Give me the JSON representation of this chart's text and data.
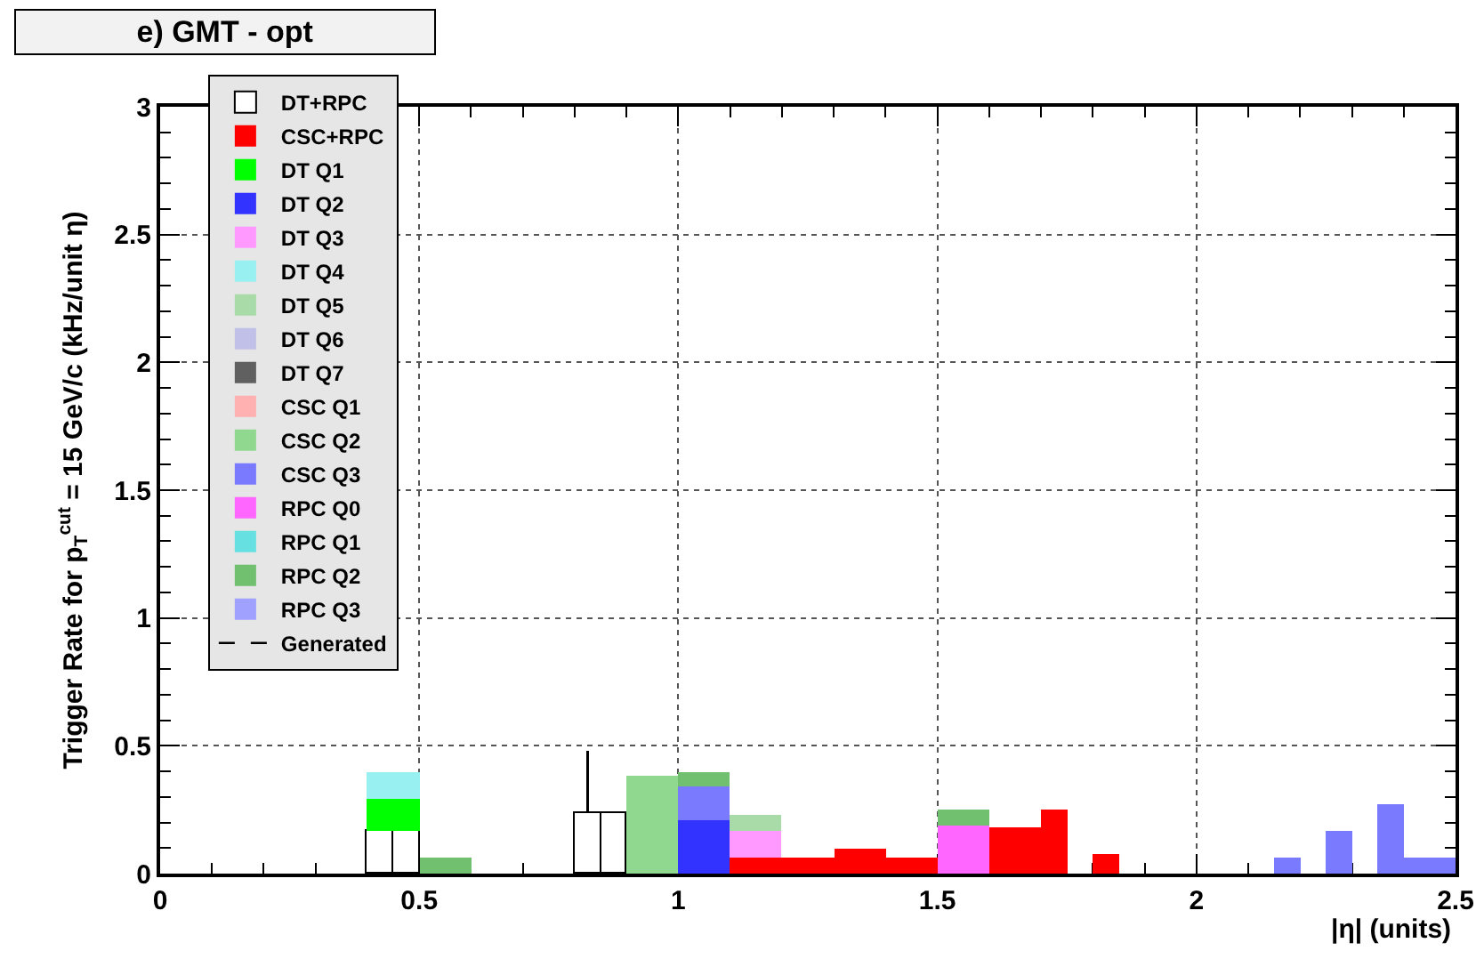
{
  "chart_data": {
    "type": "bar",
    "title": "e) GMT - opt",
    "xlabel": "|η| (units)",
    "ylabel": "Trigger Rate for p$_{T}$$^{cut}$ = 15 GeV/c (kHz/unit η)",
    "x": [
      0.425,
      0.475,
      0.525,
      0.575,
      0.825,
      0.875,
      0.925,
      0.975,
      1.025,
      1.075,
      1.125,
      1.175,
      1.225,
      1.275,
      1.325,
      1.375,
      1.425,
      1.475,
      1.525,
      1.575,
      1.625,
      1.675,
      1.725,
      1.825,
      2.175,
      2.275,
      2.375,
      2.425,
      2.475
    ],
    "stacked": true,
    "xlim": [
      0,
      2.5
    ],
    "ylim": [
      0,
      3
    ],
    "xticks": [
      0,
      0.5,
      1,
      1.5,
      2,
      2.5
    ],
    "yticks": [
      0,
      0.5,
      1,
      1.5,
      2,
      2.5,
      3
    ],
    "grid": true,
    "legend": "top left",
    "series": [
      {
        "name": "DT+RPC",
        "color": "#ffffff",
        "values": [
          0.17,
          0.17,
          null,
          null,
          0.24,
          0.24,
          null,
          null,
          null,
          null,
          null,
          null,
          null,
          null,
          null,
          null,
          null,
          null,
          null,
          null,
          null,
          null,
          null,
          null,
          null,
          null,
          null,
          null,
          null
        ],
        "errors": [
          null,
          null,
          null,
          null,
          [
            0.24,
            0.48
          ],
          null,
          null,
          null,
          null,
          null,
          null,
          null,
          null,
          null,
          null,
          null,
          null,
          null,
          null,
          null,
          null,
          null,
          null,
          null,
          null,
          null,
          null,
          null,
          null
        ]
      },
      {
        "name": "CSC+RPC",
        "color": "#ff0000",
        "values": [
          null,
          null,
          null,
          null,
          null,
          null,
          null,
          null,
          null,
          null,
          0.06,
          0.06,
          0.06,
          0.06,
          0.1,
          0.1,
          0.06,
          0.06,
          null,
          null,
          0.18,
          0.18,
          0.25,
          0.08,
          null,
          null,
          null,
          null,
          null
        ]
      },
      {
        "name": "DT Q1",
        "color": "#00ff00",
        "values": [
          0.12,
          0.12,
          null,
          null,
          null,
          null,
          null,
          null,
          null,
          null,
          null,
          null,
          null,
          null,
          null,
          null,
          null,
          null,
          null,
          null,
          null,
          null,
          null,
          null,
          null,
          null,
          null,
          null,
          null
        ]
      },
      {
        "name": "DT Q2",
        "color": "#3333ff",
        "values": [
          null,
          null,
          null,
          null,
          null,
          null,
          null,
          null,
          0.21,
          0.21,
          null,
          null,
          null,
          null,
          null,
          null,
          null,
          null,
          null,
          null,
          null,
          null,
          null,
          null,
          null,
          null,
          null,
          null,
          null
        ]
      },
      {
        "name": "DT Q3",
        "color": "#ff99ff",
        "values": [
          null,
          null,
          null,
          null,
          null,
          null,
          null,
          null,
          null,
          null,
          0.11,
          0.11,
          null,
          null,
          null,
          null,
          null,
          null,
          null,
          null,
          null,
          null,
          null,
          null,
          null,
          null,
          null,
          null,
          null
        ]
      },
      {
        "name": "DT Q4",
        "color": "#99f0f0",
        "values": [
          0.11,
          0.11,
          null,
          null,
          null,
          null,
          null,
          null,
          null,
          null,
          null,
          null,
          null,
          null,
          null,
          null,
          null,
          null,
          null,
          null,
          null,
          null,
          null,
          null,
          null,
          null,
          null,
          null,
          null
        ]
      },
      {
        "name": "DT Q5",
        "color": "#a8dba8",
        "values": [
          null,
          null,
          null,
          null,
          null,
          null,
          null,
          null,
          null,
          null,
          0.06,
          0.06,
          null,
          null,
          null,
          null,
          null,
          null,
          null,
          null,
          null,
          null,
          null,
          null,
          null,
          null,
          null,
          null,
          null
        ]
      },
      {
        "name": "DT Q6",
        "color": "#c0c0e8",
        "values": [
          null,
          null,
          null,
          null,
          null,
          null,
          null,
          null,
          null,
          null,
          null,
          null,
          null,
          null,
          null,
          null,
          null,
          null,
          null,
          null,
          null,
          null,
          null,
          null,
          null,
          null,
          null,
          null,
          null
        ]
      },
      {
        "name": "DT Q7",
        "color": "#606060",
        "values": [
          null,
          null,
          null,
          null,
          null,
          null,
          null,
          null,
          null,
          null,
          null,
          null,
          null,
          null,
          null,
          null,
          null,
          null,
          null,
          null,
          null,
          null,
          null,
          null,
          null,
          null,
          null,
          null,
          null
        ]
      },
      {
        "name": "CSC Q1",
        "color": "#ffb0b0",
        "values": [
          null,
          null,
          null,
          null,
          null,
          null,
          null,
          null,
          null,
          null,
          null,
          null,
          null,
          null,
          null,
          null,
          null,
          null,
          null,
          null,
          null,
          null,
          null,
          null,
          null,
          null,
          null,
          null,
          null
        ]
      },
      {
        "name": "CSC Q2",
        "color": "#90d890",
        "values": [
          null,
          null,
          null,
          null,
          null,
          null,
          0.38,
          0.38,
          null,
          null,
          null,
          null,
          null,
          null,
          null,
          null,
          null,
          null,
          null,
          null,
          null,
          null,
          null,
          null,
          null,
          null,
          null,
          null,
          null
        ]
      },
      {
        "name": "CSC Q3",
        "color": "#7a7aff",
        "values": [
          null,
          null,
          null,
          null,
          null,
          null,
          null,
          null,
          0.13,
          0.13,
          null,
          null,
          null,
          null,
          null,
          null,
          null,
          null,
          null,
          null,
          null,
          null,
          null,
          null,
          0.06,
          0.17,
          0.27,
          0.06,
          0.06
        ]
      },
      {
        "name": "RPC Q0",
        "color": "#ff66ff",
        "values": [
          null,
          null,
          null,
          null,
          null,
          null,
          null,
          null,
          null,
          null,
          null,
          null,
          null,
          null,
          null,
          null,
          null,
          null,
          0.19,
          0.19,
          null,
          null,
          null,
          null,
          null,
          null,
          null,
          null,
          null
        ]
      },
      {
        "name": "RPC Q1",
        "color": "#66e0e0",
        "values": [
          null,
          null,
          null,
          null,
          null,
          null,
          null,
          null,
          null,
          null,
          null,
          null,
          null,
          null,
          null,
          null,
          null,
          null,
          null,
          null,
          null,
          null,
          null,
          null,
          null,
          null,
          null,
          null,
          null
        ]
      },
      {
        "name": "RPC Q2",
        "color": "#70c070",
        "values": [
          null,
          null,
          0.06,
          0.06,
          null,
          null,
          null,
          null,
          0.06,
          0.06,
          null,
          null,
          null,
          null,
          null,
          null,
          null,
          null,
          0.06,
          0.06,
          null,
          null,
          null,
          null,
          null,
          null,
          null,
          null,
          null
        ]
      },
      {
        "name": "RPC Q3",
        "color": "#a0a0ff",
        "values": [
          null,
          null,
          null,
          null,
          null,
          null,
          null,
          null,
          null,
          null,
          null,
          null,
          null,
          null,
          null,
          null,
          null,
          null,
          null,
          null,
          null,
          null,
          null,
          null,
          null,
          null,
          null,
          null,
          null
        ]
      },
      {
        "name": "Generated",
        "color": "#000000",
        "type": "step",
        "line_style": "dashed",
        "values": [
          null,
          null,
          null,
          null,
          null,
          null,
          null,
          null,
          null,
          null,
          null,
          null,
          null,
          null,
          null,
          null,
          null,
          null,
          null,
          null,
          null,
          null,
          null,
          null,
          null,
          null,
          null,
          null,
          null
        ]
      }
    ]
  }
}
